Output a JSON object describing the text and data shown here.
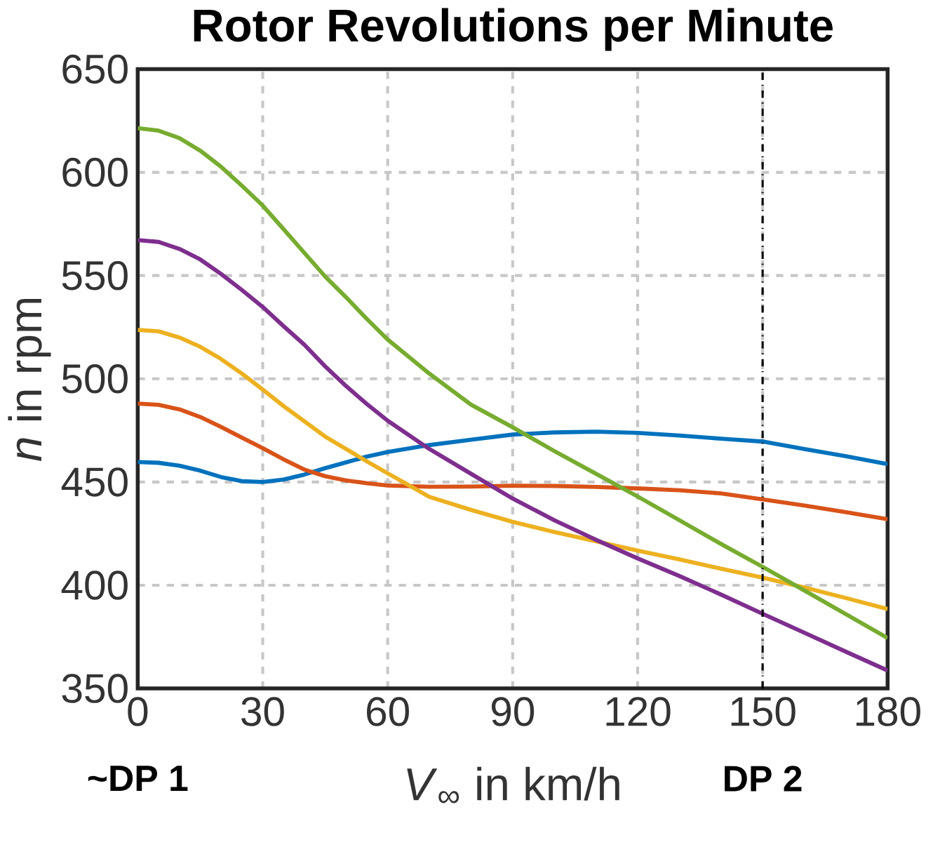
{
  "chart_data": {
    "type": "line",
    "title": "Rotor Revolutions per Minute",
    "xlabel": "*V*$_{∞}$ in km/h",
    "ylabel": "*n* in rpm",
    "x": [
      0,
      5,
      10,
      15,
      20,
      25,
      30,
      35,
      40,
      45,
      50,
      55,
      60,
      70,
      80,
      90,
      100,
      110,
      120,
      130,
      140,
      150,
      160,
      170,
      180
    ],
    "series": [
      {
        "color": "#0072bd",
        "values": [
          459.7,
          459.3,
          457.9,
          455.5,
          452.4,
          450.4,
          450,
          451.2,
          453.6,
          456.7,
          459.5,
          462.3,
          464.5,
          467.9,
          470.5,
          473,
          474,
          474.4,
          473.8,
          472.5,
          471,
          469.6,
          466,
          462.5,
          458.7
        ]
      },
      {
        "color": "#d95319",
        "values": [
          488,
          487.4,
          485.2,
          481.5,
          476.7,
          471.5,
          466.4,
          461,
          456,
          452.8,
          450.8,
          449.4,
          448.3,
          447.7,
          447.8,
          448.2,
          448.1,
          447.6,
          446.9,
          446,
          444.5,
          441.6,
          438.6,
          435.4,
          432
        ]
      },
      {
        "color": "#edb120",
        "values": [
          523.7,
          523,
          520,
          515.5,
          509.6,
          502.5,
          494.8,
          486.8,
          479.4,
          472,
          466,
          460,
          454.2,
          442.8,
          436.5,
          430.7,
          425.8,
          421.3,
          416.8,
          412.5,
          408,
          403.7,
          398.9,
          393.8,
          388.5
        ]
      },
      {
        "color": "#7e2f8e",
        "values": [
          567.2,
          566.3,
          562.9,
          557.8,
          550.8,
          543,
          534.8,
          525.5,
          516.5,
          506,
          496.5,
          487.8,
          479.7,
          466,
          454,
          442,
          431.5,
          422,
          413,
          404.5,
          395.5,
          386.2,
          377,
          367.8,
          358.7
        ]
      },
      {
        "color": "#77ac30",
        "values": [
          621.4,
          620.2,
          616.6,
          610.5,
          602.7,
          593.5,
          583.9,
          572.5,
          561,
          549.5,
          539.5,
          529,
          519,
          502.5,
          487.5,
          476.5,
          465,
          454,
          443,
          431.5,
          420,
          408.9,
          397.5,
          386,
          374.4
        ]
      }
    ],
    "xlim": [
      0,
      180
    ],
    "xticks": [
      0,
      30,
      60,
      90,
      120,
      150,
      180
    ],
    "ylim": [
      350,
      650
    ],
    "yticks": [
      350,
      400,
      450,
      500,
      550,
      600,
      650
    ],
    "grid": true,
    "line_style": "solid",
    "ref_lines": [
      {
        "axis": "x",
        "value": 150,
        "label": "DP 2",
        "color": "#000000",
        "line_style": "dashdot"
      }
    ],
    "annotations": [
      "~DP 1"
    ]
  }
}
